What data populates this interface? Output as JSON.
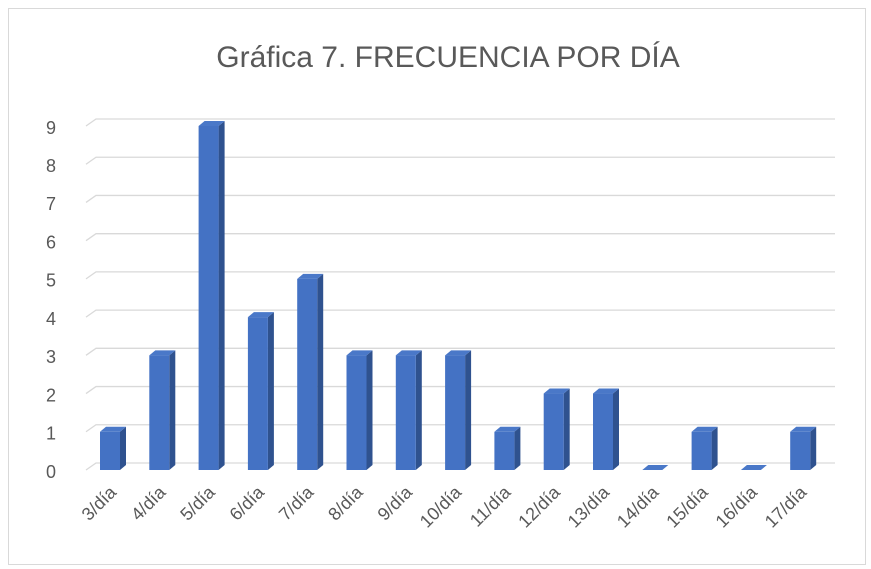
{
  "chart_data": {
    "type": "bar3d",
    "title": "Gráfica 7. FRECUENCIA POR DÍA",
    "categories": [
      "3/día",
      "4/día",
      "5/día",
      "6/día",
      "7/día",
      "8/día",
      "9/día",
      "10/día",
      "11/día",
      "12/día",
      "13/día",
      "14/día",
      "15/día",
      "16/día",
      "17/día"
    ],
    "values": [
      1,
      3,
      9,
      4,
      5,
      3,
      3,
      3,
      1,
      2,
      2,
      0,
      1,
      0,
      1
    ],
    "color": "#4472c4",
    "ylim": [
      0,
      9
    ],
    "yticks": [
      0,
      1,
      2,
      3,
      4,
      5,
      6,
      7,
      8,
      9
    ],
    "grid": true
  }
}
